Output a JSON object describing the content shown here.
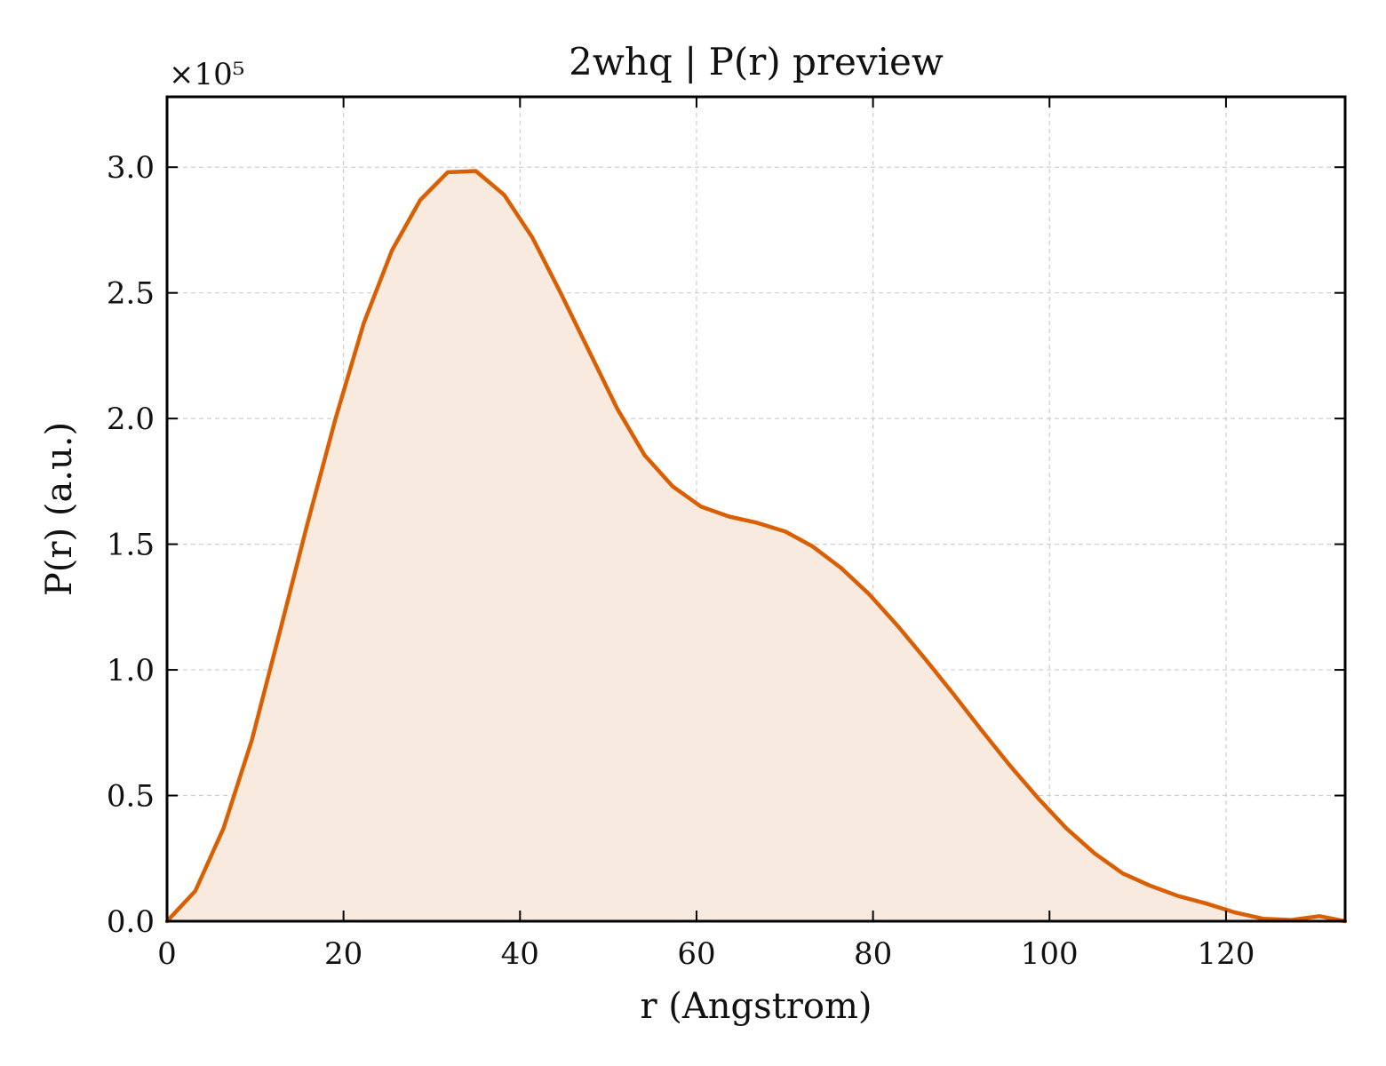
{
  "chart_data": {
    "type": "area",
    "title": "2whq | P(r) preview",
    "xlabel": "r (Angstrom)",
    "ylabel": "P(r) (a.u.)",
    "y_multiplier_label": "×10⁵",
    "y_scale_factor": 100000,
    "xlim": [
      0,
      133.5
    ],
    "ylim": [
      0,
      3.28
    ],
    "xticks": [
      0,
      20,
      40,
      60,
      80,
      100,
      120
    ],
    "xtick_labels": [
      "0",
      "20",
      "40",
      "60",
      "80",
      "100",
      "120"
    ],
    "yticks": [
      0,
      0.5,
      1.0,
      1.5,
      2.0,
      2.5,
      3.0
    ],
    "ytick_labels": [
      "0.0",
      "0.5",
      "1.0",
      "1.5",
      "2.0",
      "2.5",
      "3.0"
    ],
    "grid": true,
    "legend": "none",
    "line_color": "#d95f02",
    "fill_color": "#f8eade",
    "x": [
      0,
      3.2,
      6.4,
      9.6,
      12.7,
      15.9,
      19.1,
      22.3,
      25.5,
      28.7,
      31.8,
      35.0,
      38.2,
      41.4,
      44.6,
      47.8,
      51.0,
      54.1,
      57.3,
      60.5,
      63.7,
      66.9,
      70.1,
      73.2,
      76.4,
      79.6,
      82.8,
      86.0,
      89.2,
      92.3,
      95.5,
      98.7,
      101.9,
      105.1,
      108.3,
      111.5,
      114.6,
      117.8,
      121.0,
      124.2,
      127.4,
      130.6,
      133.5
    ],
    "values": [
      0.0,
      0.12,
      0.37,
      0.72,
      1.14,
      1.58,
      2.0,
      2.38,
      2.67,
      2.87,
      2.98,
      2.985,
      2.89,
      2.72,
      2.5,
      2.27,
      2.04,
      1.855,
      1.73,
      1.65,
      1.61,
      1.585,
      1.55,
      1.49,
      1.405,
      1.3,
      1.175,
      1.04,
      0.9,
      0.76,
      0.62,
      0.49,
      0.37,
      0.27,
      0.19,
      0.14,
      0.1,
      0.07,
      0.035,
      0.01,
      0.005,
      0.02,
      0.0
    ]
  }
}
